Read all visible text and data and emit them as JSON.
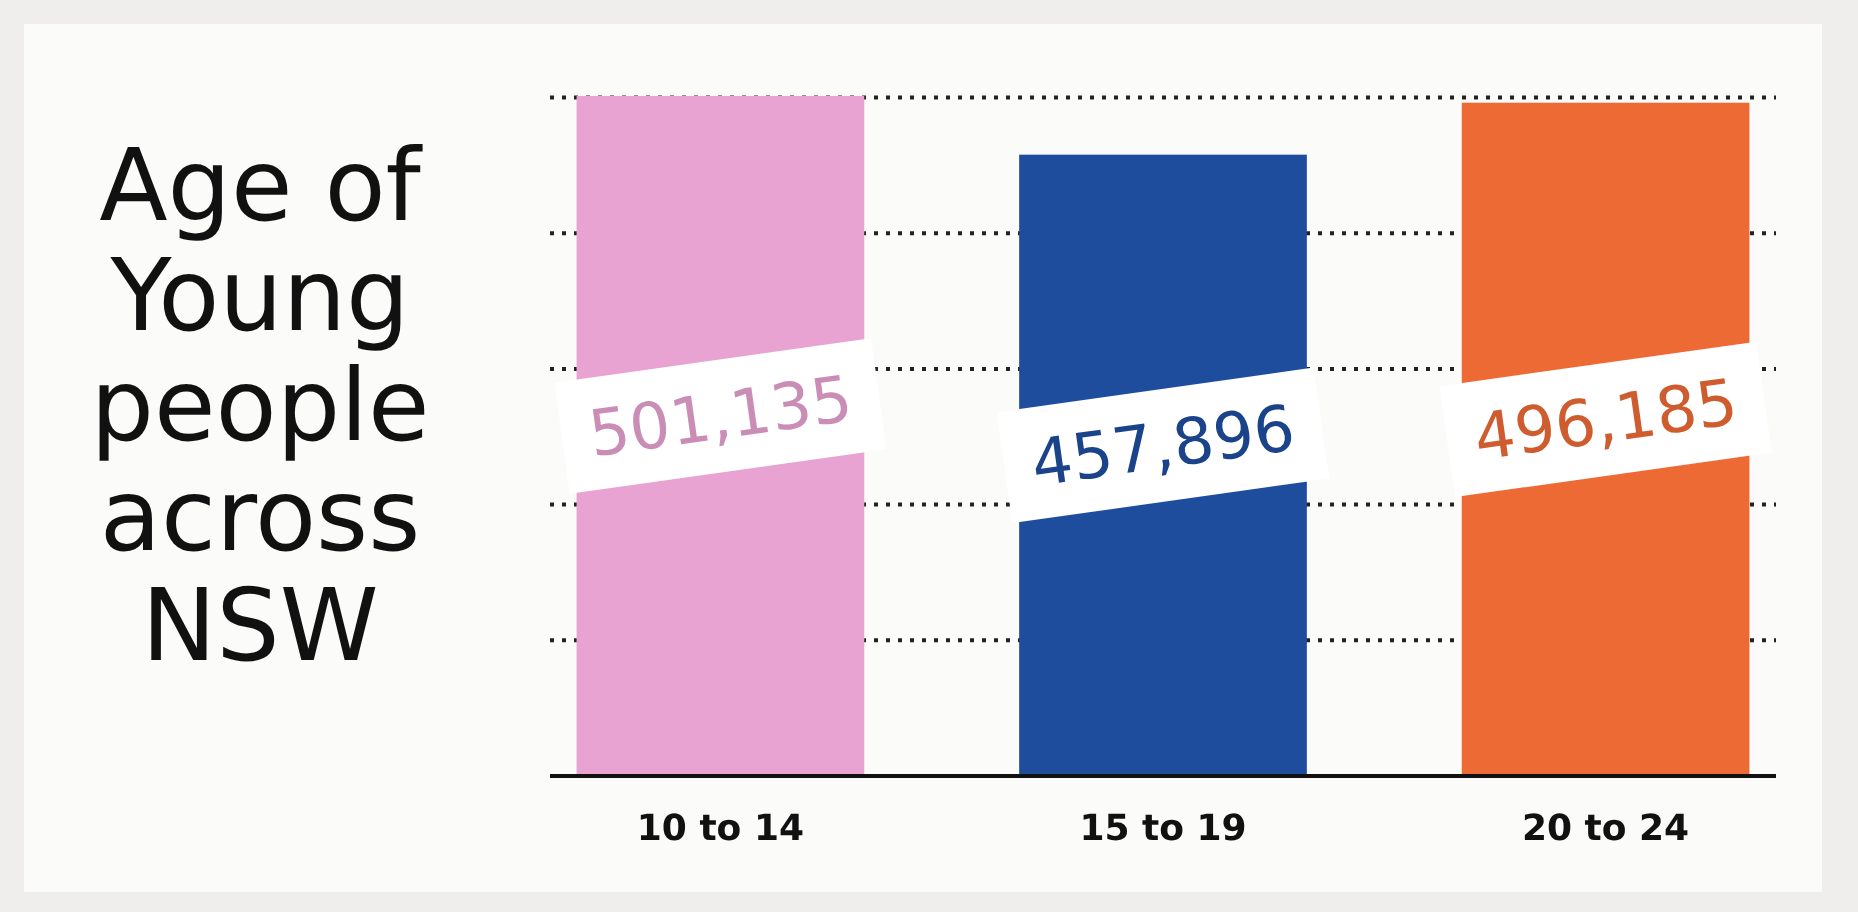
{
  "chart_data": {
    "type": "bar",
    "title": "Age of Young people across NSW",
    "categories": [
      "10 to 14",
      "15 to 19",
      "20 to 24"
    ],
    "values": [
      501135,
      457896,
      496185
    ],
    "colors": [
      "#e8a3d2",
      "#1f4d9e",
      "#ee6a35"
    ],
    "data_labels": true,
    "value_labels": [
      "501,135",
      "457,896",
      "496,185"
    ],
    "ylim": [
      0,
      501135
    ],
    "yticks": [
      {
        "value": 100000,
        "label": null
      },
      {
        "value": 200000,
        "label": null
      },
      {
        "value": 300000,
        "label": null
      },
      {
        "value": 400000,
        "label": null
      },
      {
        "value": 500000,
        "label": null
      }
    ],
    "grid": "y",
    "tick_labels": "x"
  }
}
